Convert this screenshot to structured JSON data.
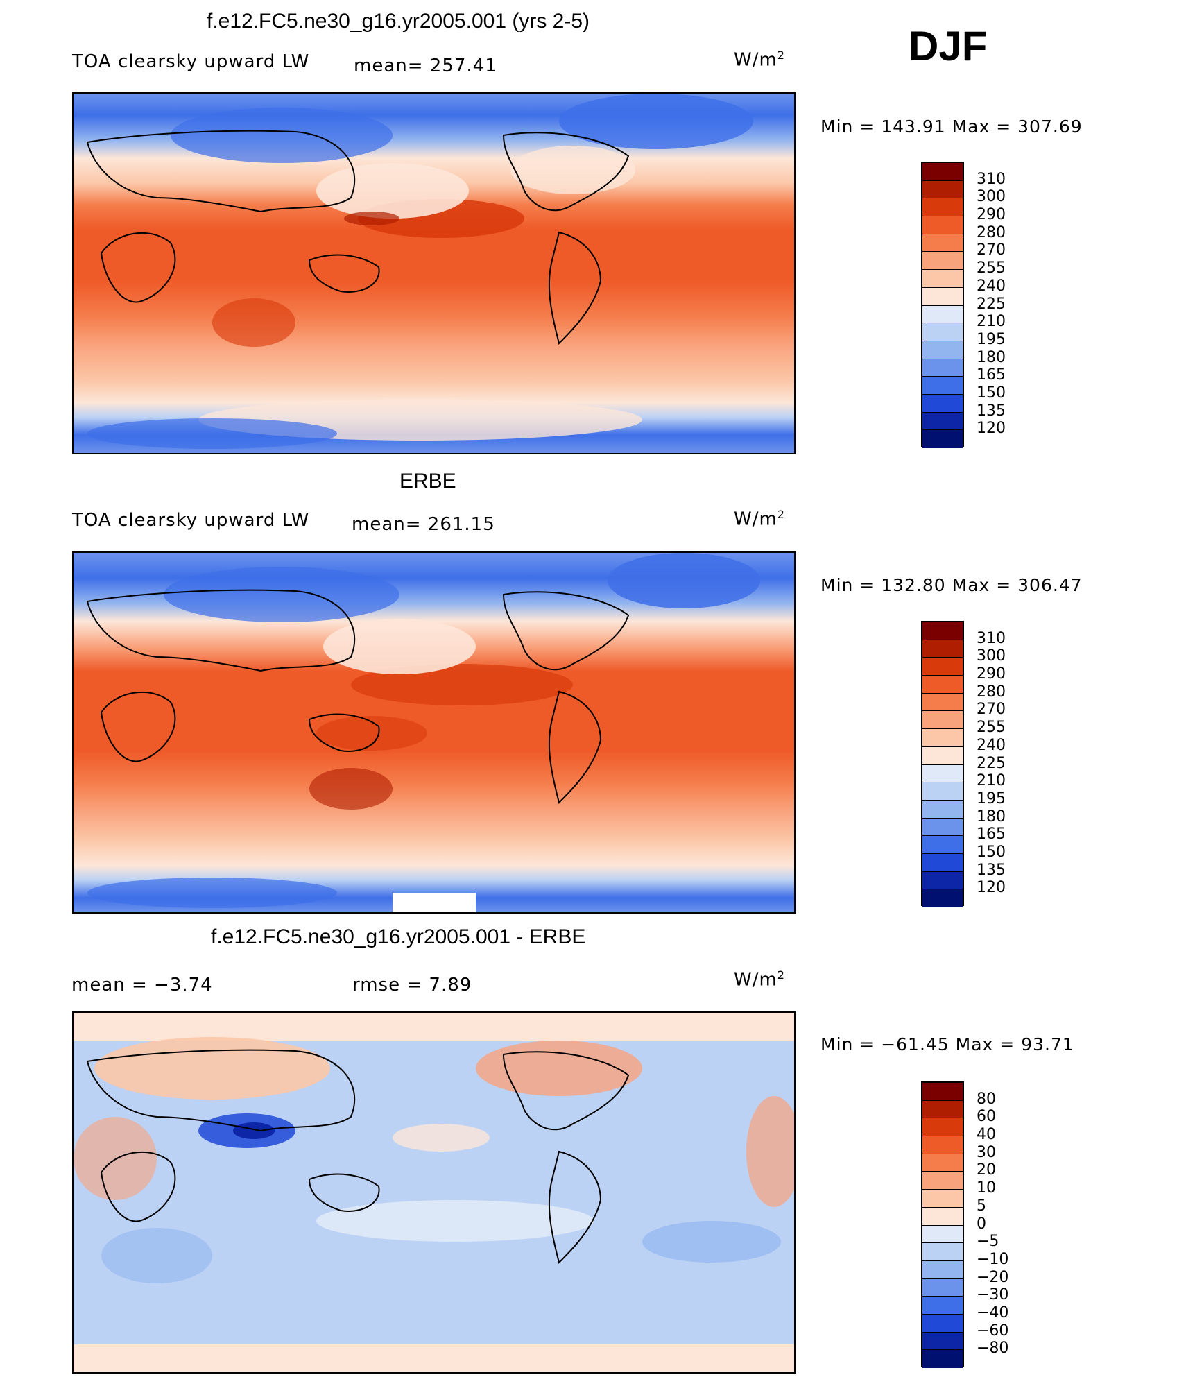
{
  "season": "DJF",
  "units_label": "W/m",
  "units_sup": "2",
  "panel1": {
    "title": "f.e12.FC5.ne30_g16.yr2005.001 (yrs 2-5)",
    "variable": "TOA clearsky upward LW",
    "mean": "mean= 257.41",
    "minmax": "Min = 143.91 Max = 307.69",
    "levels": [
      "310",
      "300",
      "290",
      "280",
      "270",
      "255",
      "240",
      "225",
      "210",
      "195",
      "180",
      "165",
      "150",
      "135",
      "120"
    ]
  },
  "panel2": {
    "title": "ERBE",
    "variable": "TOA clearsky upward LW",
    "mean": "mean= 261.15",
    "minmax": "Min = 132.80 Max = 306.47",
    "levels": [
      "310",
      "300",
      "290",
      "280",
      "270",
      "255",
      "240",
      "225",
      "210",
      "195",
      "180",
      "165",
      "150",
      "135",
      "120"
    ]
  },
  "panel3": {
    "title": "f.e12.FC5.ne30_g16.yr2005.001 - ERBE",
    "mean": "mean =   −3.74",
    "rmse": "rmse =    7.89",
    "minmax": "Min = −61.45 Max =  93.71",
    "levels": [
      "80",
      "60",
      "40",
      "30",
      "20",
      "10",
      "5",
      "0",
      "−5",
      "−10",
      "−20",
      "−30",
      "−40",
      "−60",
      "−80"
    ]
  },
  "colors": {
    "abs_scale": [
      "#7a0000",
      "#b01e00",
      "#d83a0c",
      "#ee5a28",
      "#f57d4c",
      "#f9a37d",
      "#fbc7a8",
      "#fde6d8",
      "#dfe9f8",
      "#bcd2f4",
      "#93b5ef",
      "#6b93ec",
      "#3f6fe8",
      "#1f49d6",
      "#0d26a8",
      "#001070"
    ],
    "diff_scale": [
      "#7a0000",
      "#b01e00",
      "#d83a0c",
      "#ee5a28",
      "#f57d4c",
      "#f9a37d",
      "#fbc7a8",
      "#fde6d8",
      "#dfe9f8",
      "#bcd2f4",
      "#93b5ef",
      "#6b93ec",
      "#3f6fe8",
      "#1f49d6",
      "#0d26a8",
      "#001070"
    ]
  }
}
